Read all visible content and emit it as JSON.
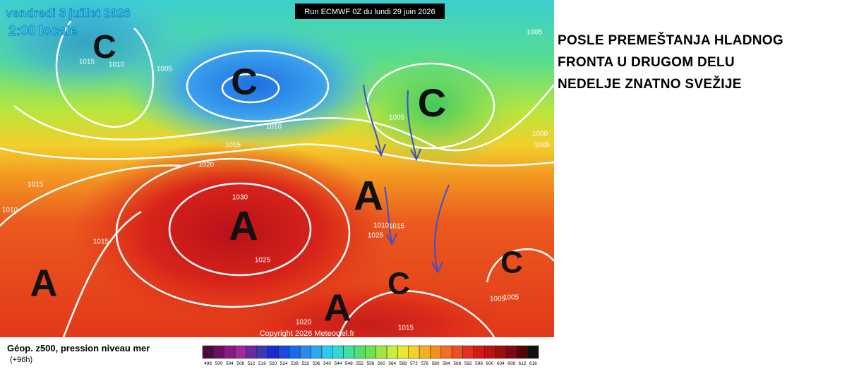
{
  "header": {
    "date": "vendredi 3 juillet 2026",
    "time": "2:00 locale",
    "run": "Run ECMWF 0Z du lundi 29 juin 2026"
  },
  "caption": {
    "lines": [
      "POSLE PREMEŠTANJA HLADNOG",
      "FRONTA U DRUGOM DELU",
      "NEDELJE ZNATNO SVEŽIJE"
    ]
  },
  "centers": [
    "C",
    "C",
    "C",
    "A",
    "A",
    "A",
    "A",
    "C",
    "C"
  ],
  "isobar_labels": [
    "1015",
    "1010",
    "1005",
    "1005",
    "1010",
    "1015",
    "1020",
    "1015",
    "1010",
    "1030",
    "1015",
    "1025",
    "1025",
    "1020",
    "1015",
    "1005",
    "1000",
    "1005",
    "1005",
    "1005",
    "1015",
    "1010"
  ],
  "copyright": "Copyright 2026 Meteociel.fr",
  "legend": {
    "title": "Géop. z500, pression niveau mer",
    "step": "(+96h)",
    "colors": [
      "#4a0a40",
      "#6a1060",
      "#8a1a80",
      "#a028a0",
      "#6a2aa0",
      "#3a3ab0",
      "#1a2ad0",
      "#1a4ae0",
      "#1a6ae8",
      "#2a8af0",
      "#2aaaf0",
      "#30c8f0",
      "#30d8d0",
      "#40e0a0",
      "#50e070",
      "#70e050",
      "#a0e840",
      "#c8ec40",
      "#e8e830",
      "#f4d028",
      "#f4b020",
      "#f49020",
      "#f07020",
      "#ea5020",
      "#e43020",
      "#d81818",
      "#c01010",
      "#a00c10",
      "#800810",
      "#500508",
      "#101010"
    ],
    "labels": [
      "496",
      "500",
      "504",
      "508",
      "512",
      "516",
      "520",
      "524",
      "528",
      "532",
      "536",
      "540",
      "544",
      "548",
      "552",
      "556",
      "560",
      "564",
      "568",
      "572",
      "576",
      "580",
      "584",
      "588",
      "592",
      "596",
      "600",
      "604",
      "608",
      "612",
      "616"
    ]
  }
}
